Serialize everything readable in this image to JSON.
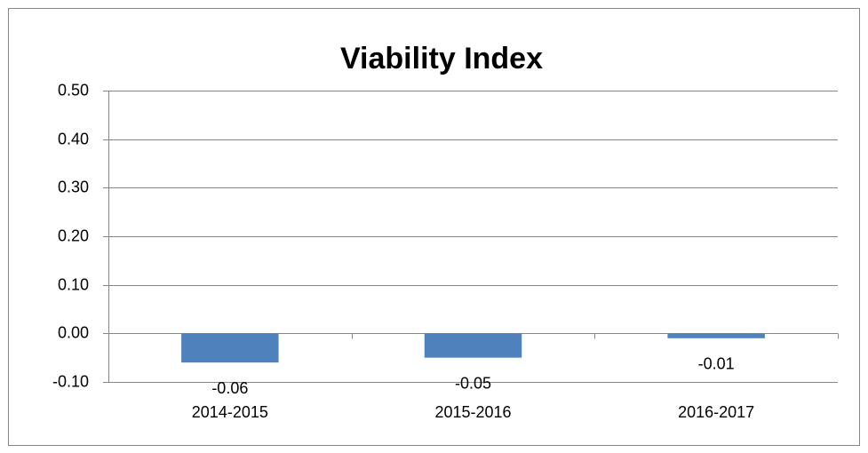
{
  "chart_data": {
    "type": "bar",
    "title": "Viability Index",
    "categories": [
      "2014-2015",
      "2015-2016",
      "2016-2017"
    ],
    "values": [
      -0.06,
      -0.05,
      -0.01
    ],
    "color": "#4f81bd",
    "ylim": [
      -0.1,
      0.5
    ],
    "yticks": [
      {
        "value": -0.1,
        "label": "-0.10"
      },
      {
        "value": 0,
        "label": "0.00"
      },
      {
        "value": 0.1,
        "label": "0.10"
      },
      {
        "value": 0.2,
        "label": "0.20"
      },
      {
        "value": 0.3,
        "label": "0.30"
      },
      {
        "value": 0.4,
        "label": "0.40"
      },
      {
        "value": 0.5,
        "label": "0.50"
      }
    ],
    "grid": true
  }
}
